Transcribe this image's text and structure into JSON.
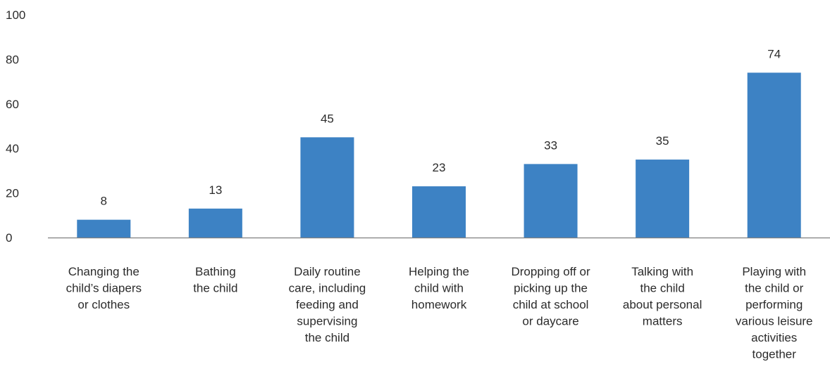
{
  "chart_data": {
    "type": "bar",
    "categories": [
      [
        "Changing the",
        "child’s diapers",
        "or clothes"
      ],
      [
        "Bathing",
        "the child"
      ],
      [
        "Daily routine",
        "care, including",
        "feeding and",
        "supervising",
        "the child"
      ],
      [
        "Helping the",
        "child with",
        "homework"
      ],
      [
        "Dropping off or",
        "picking up the",
        "child at school",
        "or daycare"
      ],
      [
        "Talking with",
        "the child",
        "about personal",
        "matters"
      ],
      [
        "Playing with",
        "the child or",
        "performing",
        "various leisure",
        "activities",
        "together"
      ]
    ],
    "values": [
      8,
      13,
      45,
      23,
      33,
      35,
      74
    ],
    "data_labels": [
      "8",
      "13",
      "45",
      "23",
      "33",
      "35",
      "74"
    ],
    "yticks": [
      "0",
      "20",
      "40",
      "60",
      "80",
      "100"
    ],
    "ylim": [
      0,
      100
    ],
    "grid": false,
    "bar_color": "#3D82C4",
    "axis_color": "#7f7f7f",
    "title": "",
    "xlabel": "",
    "ylabel": ""
  }
}
